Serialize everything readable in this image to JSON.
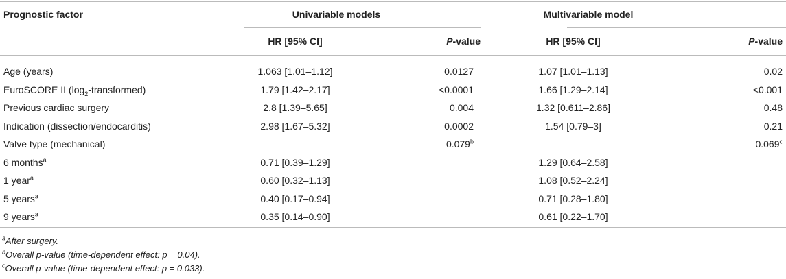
{
  "table": {
    "header": {
      "factor": "Prognostic factor",
      "groups": [
        "Univariable models",
        "Multivariable model"
      ],
      "columns": [
        {
          "text": "HR [95% CI]"
        },
        {
          "italic": "P",
          "text": "-value"
        },
        {
          "text": "HR [95% CI]"
        },
        {
          "italic": "P",
          "text": "-value"
        }
      ]
    },
    "rows": [
      {
        "factor": "Age (years)",
        "uni_hr": "1.063 [1.01–1.12]",
        "uni_p": "0.0127",
        "multi_hr": "1.07 [1.01–1.13]",
        "multi_p": "0.02"
      },
      {
        "factor": "EuroSCORE II (log",
        "factor_sub": "2",
        "factor_after": "-transformed)",
        "uni_hr": "1.79 [1.42–2.17]",
        "uni_p": "<0.0001",
        "multi_hr": "1.66 [1.29–2.14]",
        "multi_p": "<0.001"
      },
      {
        "factor": "Previous cardiac surgery",
        "uni_hr": "2.8 [1.39–5.65]",
        "uni_p": "0.004",
        "multi_hr": "1.32 [0.611–2.86]",
        "multi_p": "0.48"
      },
      {
        "factor": "Indication (dissection/endocarditis)",
        "uni_hr": "2.98 [1.67–5.32]",
        "uni_p": "0.0002",
        "multi_hr": "1.54 [0.79–3]",
        "multi_p": "0.21"
      },
      {
        "factor": "Valve type (mechanical)",
        "uni_p": "0.079",
        "uni_p_sup": "b",
        "multi_p": "0.069",
        "multi_p_sup": "c"
      },
      {
        "factor": "6 months",
        "factor_sup": "a",
        "uni_hr": "0.71 [0.39–1.29]",
        "multi_hr": "1.29 [0.64–2.58]"
      },
      {
        "factor": "1 year",
        "factor_sup": "a",
        "uni_hr": "0.60 [0.32–1.13]",
        "multi_hr": "1.08 [0.52–2.24]"
      },
      {
        "factor": "5 years",
        "factor_sup": "a",
        "uni_hr": "0.40 [0.17–0.94]",
        "multi_hr": "0.71 [0.28–1.80]"
      },
      {
        "factor": "9 years",
        "factor_sup": "a",
        "uni_hr": "0.35 [0.14–0.90]",
        "multi_hr": "0.61 [0.22–1.70]"
      }
    ]
  },
  "footnotes": [
    {
      "mark": "a",
      "text": "After surgery."
    },
    {
      "mark": "b",
      "text": "Overall p-value (time-dependent effect: p = 0.04)."
    },
    {
      "mark": "c",
      "text": "Overall p-value (time-dependent effect: p = 0.033)."
    }
  ]
}
